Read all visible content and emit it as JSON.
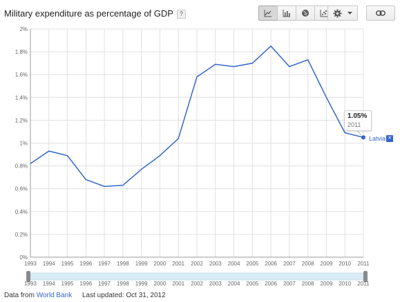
{
  "header": {
    "title": "Military expenditure as percentage of GDP",
    "help_label": "?"
  },
  "toolbar": {
    "chart_types": [
      {
        "name": "line-chart-icon",
        "active": true
      },
      {
        "name": "bar-chart-icon",
        "active": false
      },
      {
        "name": "map-icon",
        "active": false
      },
      {
        "name": "scatter-chart-icon",
        "active": false
      }
    ],
    "settings_icon": "gear-icon",
    "link_icon": "link-icon"
  },
  "tooltip": {
    "value": "1.05%",
    "year": "2011"
  },
  "series_legend": {
    "name": "Latvia",
    "remove_label": "✕"
  },
  "footer": {
    "source_prefix": "Data from",
    "source_name": "World Bank",
    "last_updated": "Last updated: Oct 31, 2012"
  },
  "colors": {
    "series": "#3366cc",
    "grid": "#e0e0e0",
    "axis_text": "#666666",
    "slider_track": "#d9ecf5"
  },
  "chart_data": {
    "type": "line",
    "title": "Military expenditure as percentage of GDP",
    "xlabel": "",
    "ylabel": "",
    "x": [
      "1993",
      "1994",
      "1995",
      "1996",
      "1997",
      "1998",
      "1999",
      "2000",
      "2001",
      "2002",
      "2003",
      "2004",
      "2005",
      "2006",
      "2007",
      "2008",
      "2009",
      "2010",
      "2011"
    ],
    "series": [
      {
        "name": "Latvia",
        "values": [
          0.82,
          0.93,
          0.89,
          0.68,
          0.62,
          0.63,
          0.77,
          0.89,
          1.04,
          1.58,
          1.69,
          1.67,
          1.7,
          1.85,
          1.67,
          1.73,
          1.4,
          1.09,
          1.05
        ]
      }
    ],
    "ylim": [
      0,
      2
    ],
    "y_ticks": [
      0,
      0.2,
      0.4,
      0.6,
      0.8,
      1.0,
      1.2,
      1.4,
      1.6,
      1.8,
      2.0
    ],
    "y_tick_labels": [
      "0%",
      "0.2%",
      "0.4%",
      "0.6%",
      "0.8%",
      "1%",
      "1.2%",
      "1.4%",
      "1.6%",
      "1.8%",
      "2%"
    ],
    "grid": true,
    "legend": "right",
    "highlighted_point": {
      "x": "2011",
      "y": 1.05
    }
  }
}
